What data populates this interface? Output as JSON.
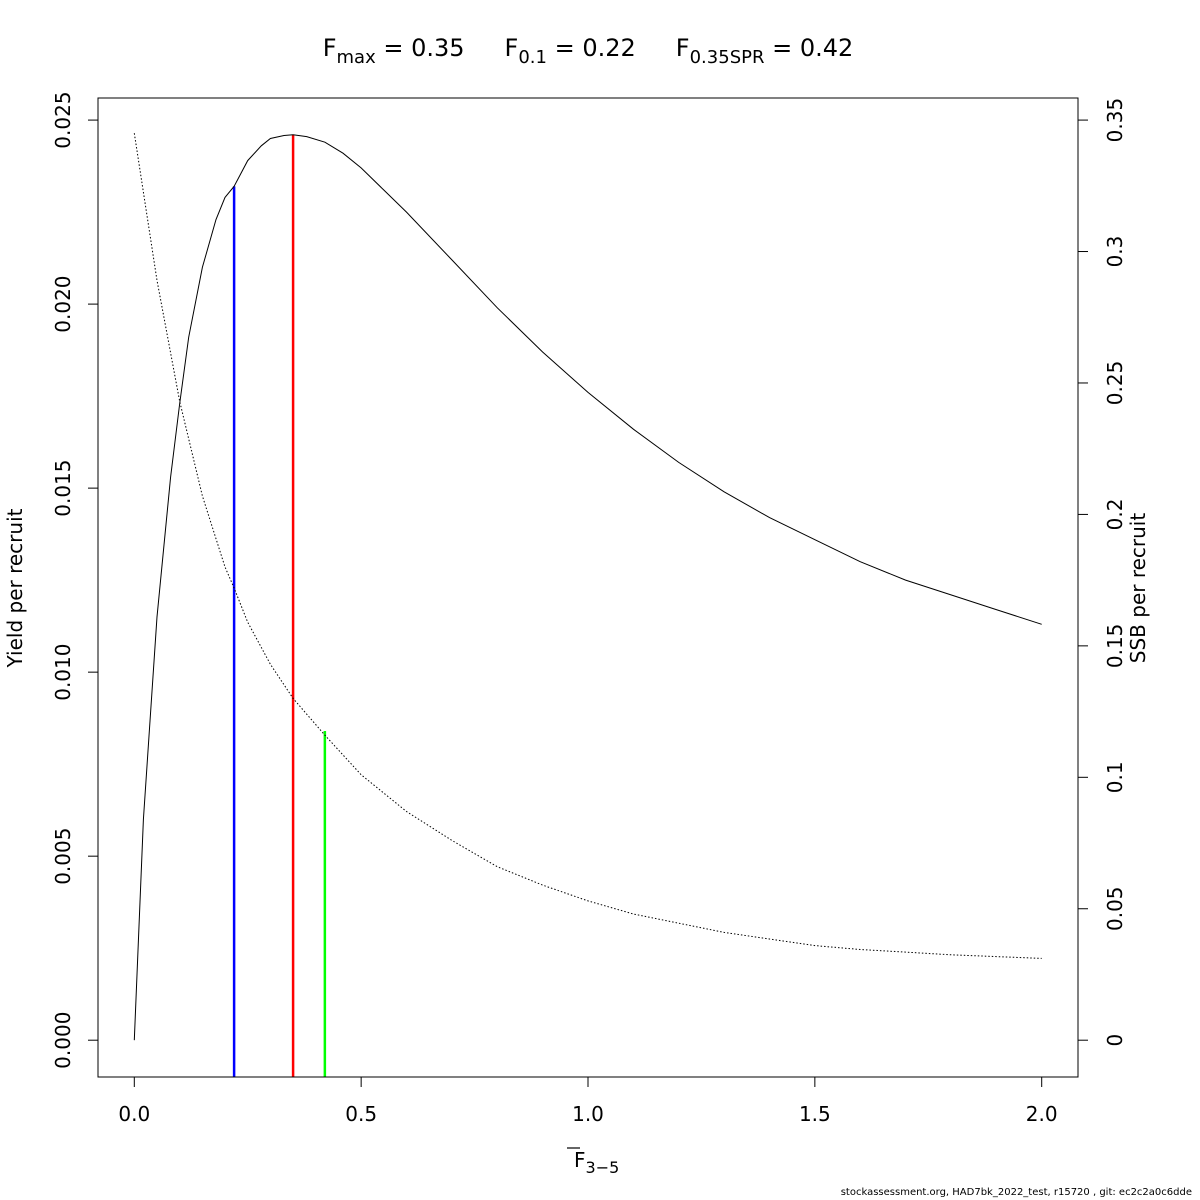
{
  "chart_data": {
    "type": "line",
    "title_parts": [
      {
        "main": "F",
        "sub": "max",
        "rest": " = 0.35"
      },
      {
        "main": "F",
        "sub": "0.1",
        "rest": " = 0.22"
      },
      {
        "main": "F",
        "sub": "0.35SPR",
        "rest": " = 0.42"
      }
    ],
    "xlabel": {
      "main": "F",
      "sub": "3−5",
      "overline": true
    },
    "ylabel_left": "Yield per recruit",
    "ylabel_right": "SSB per recruit",
    "xlim": [
      -0.08,
      2.08
    ],
    "ylim_left": [
      -0.001,
      0.0256
    ],
    "ylim_right": [
      -0.014,
      0.3584
    ],
    "x_ticks": [
      0,
      0.5,
      1,
      1.5,
      2
    ],
    "x_tick_labels": [
      "0.0",
      "0.5",
      "1.0",
      "1.5",
      "2.0"
    ],
    "y_left_ticks": [
      0,
      0.005,
      0.01,
      0.015,
      0.02,
      0.025
    ],
    "y_left_tick_labels": [
      "0.000",
      "0.005",
      "0.010",
      "0.015",
      "0.020",
      "0.025"
    ],
    "y_right_ticks": [
      0,
      0.05,
      0.1,
      0.15,
      0.2,
      0.25,
      0.3,
      0.35
    ],
    "y_right_tick_labels": [
      "0",
      "0.05",
      "0.1",
      "0.15",
      "0.2",
      "0.25",
      "0.3",
      "0.35"
    ],
    "series": [
      {
        "role": "yield",
        "axis": "left",
        "style": "solid",
        "color": "#000000",
        "x": [
          0,
          0.02,
          0.05,
          0.08,
          0.1,
          0.12,
          0.15,
          0.18,
          0.2,
          0.22,
          0.25,
          0.28,
          0.3,
          0.33,
          0.35,
          0.38,
          0.42,
          0.46,
          0.5,
          0.55,
          0.6,
          0.7,
          0.8,
          0.9,
          1.0,
          1.1,
          1.2,
          1.3,
          1.4,
          1.5,
          1.6,
          1.7,
          1.8,
          1.9,
          2.0
        ],
        "y": [
          0.0,
          0.006,
          0.0115,
          0.0153,
          0.0173,
          0.0191,
          0.021,
          0.0223,
          0.0229,
          0.0232,
          0.0239,
          0.0243,
          0.0245,
          0.02458,
          0.0246,
          0.02455,
          0.0244,
          0.0241,
          0.0237,
          0.0231,
          0.0225,
          0.0212,
          0.0199,
          0.0187,
          0.0176,
          0.0166,
          0.0157,
          0.0149,
          0.0142,
          0.0136,
          0.013,
          0.0125,
          0.0121,
          0.0117,
          0.0113
        ]
      },
      {
        "role": "ssb",
        "axis": "right",
        "style": "dotted",
        "color": "#000000",
        "x": [
          0,
          0.05,
          0.1,
          0.15,
          0.2,
          0.22,
          0.25,
          0.3,
          0.35,
          0.42,
          0.5,
          0.6,
          0.7,
          0.8,
          0.9,
          1.0,
          1.1,
          1.2,
          1.3,
          1.4,
          1.5,
          1.6,
          1.7,
          1.8,
          1.9,
          2.0
        ],
        "y": [
          0.345,
          0.289,
          0.243,
          0.207,
          0.18,
          0.172,
          0.159,
          0.143,
          0.13,
          0.116,
          0.101,
          0.087,
          0.076,
          0.066,
          0.059,
          0.053,
          0.048,
          0.0445,
          0.041,
          0.0385,
          0.036,
          0.0345,
          0.0335,
          0.0325,
          0.0318,
          0.0311
        ]
      }
    ],
    "reference_lines": [
      {
        "name": "F0.1",
        "x": 0.22,
        "axis": "left",
        "y_top": 0.0232,
        "color": "#0000ff"
      },
      {
        "name": "Fmax",
        "x": 0.35,
        "axis": "left",
        "y_top": 0.0246,
        "color": "#ff0000"
      },
      {
        "name": "F0.35SPR",
        "x": 0.42,
        "axis": "left",
        "y_top": 0.0084,
        "color": "#00ff00"
      }
    ]
  },
  "footer": "stockassessment.org, HAD7bk_2022_test, r15720 , git: ec2c2a0c6dde"
}
